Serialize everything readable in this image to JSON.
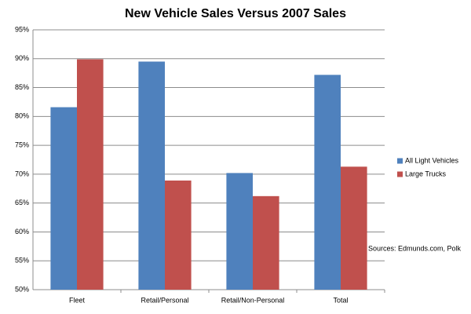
{
  "chart_data": {
    "type": "bar",
    "title": "New Vehicle Sales Versus 2007 Sales",
    "categories": [
      "Fleet",
      "Retail/Personal",
      "Retail/Non-Personal",
      "Total"
    ],
    "series": [
      {
        "name": "All Light Vehicles",
        "color": "#4f81bd",
        "values": [
          81.6,
          89.5,
          70.2,
          87.2
        ]
      },
      {
        "name": "Large Trucks",
        "color": "#c0504d",
        "values": [
          89.9,
          68.9,
          66.2,
          71.3
        ]
      }
    ],
    "ylim": [
      50,
      95
    ],
    "yticks": [
      {
        "value": 50,
        "label": "50%"
      },
      {
        "value": 55,
        "label": "55%"
      },
      {
        "value": 60,
        "label": "60%"
      },
      {
        "value": 65,
        "label": "65%"
      },
      {
        "value": 70,
        "label": "70%"
      },
      {
        "value": 75,
        "label": "75%"
      },
      {
        "value": 80,
        "label": "80%"
      },
      {
        "value": 85,
        "label": "85%"
      },
      {
        "value": 90,
        "label": "90%"
      },
      {
        "value": 95,
        "label": "95%"
      }
    ],
    "grid": true,
    "legend": "right",
    "annotation": "Sources: Edmunds.com, Polk"
  }
}
